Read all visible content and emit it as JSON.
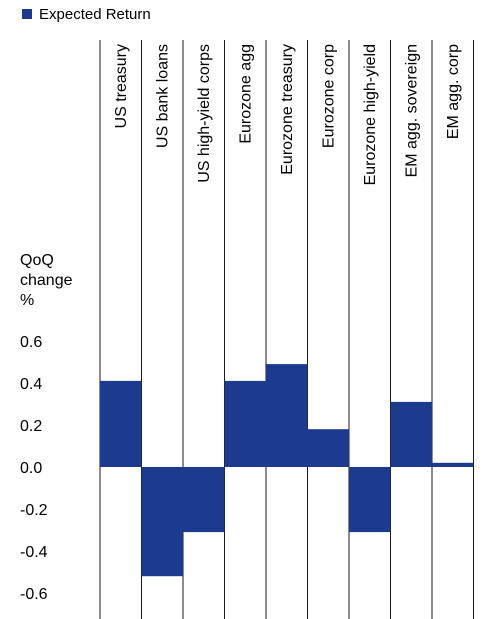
{
  "chart_data": {
    "type": "bar",
    "legend": {
      "label": "Expected Return",
      "color": "#1c3a8e",
      "placement": "top-left"
    },
    "ylabel_lines": [
      "QoQ",
      "change",
      "%"
    ],
    "categories": [
      "US treasury",
      "US bank loans",
      "US high-yield corps",
      "Eurozone agg",
      "Eurozone treasury",
      "Eurozone corp",
      "Eurozone high-yield",
      "EM agg. sovereign",
      "EM agg. corp"
    ],
    "series": [
      {
        "name": "Expected Return",
        "color": "#1c3a8e",
        "values": [
          0.41,
          -0.52,
          -0.31,
          0.41,
          0.49,
          0.18,
          -0.31,
          0.31,
          0.02
        ]
      }
    ],
    "yticks": [
      "0.6",
      "0.4",
      "0.2",
      "0.0",
      "-0.2",
      "-0.4",
      "-0.6"
    ],
    "ylim": [
      -0.6,
      0.6
    ],
    "grid": false
  }
}
